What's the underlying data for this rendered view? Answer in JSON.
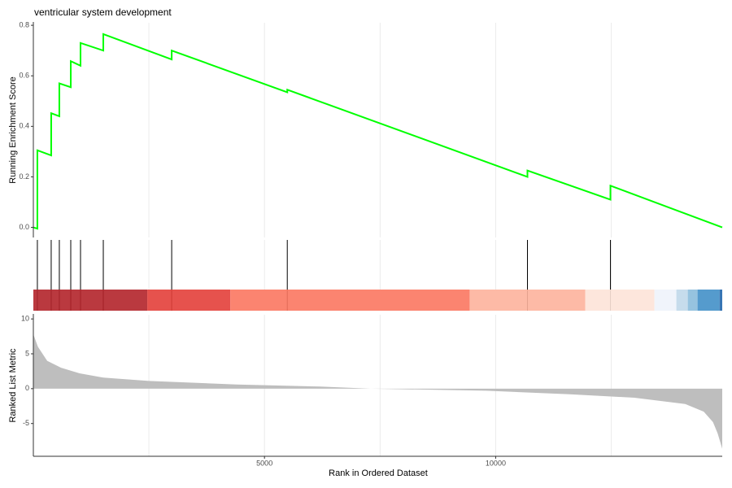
{
  "chart_data": [
    {
      "type": "line",
      "title": "ventricular system development",
      "ylabel": "Running Enrichment Score",
      "x": [
        1,
        88,
        88,
        387,
        387,
        563,
        563,
        810,
        810,
        1021,
        1021,
        1514,
        1514,
        2993,
        2993,
        5493,
        5493,
        10687,
        10687,
        12482,
        12482,
        14900
      ],
      "series": [
        {
          "color": "#00ff00",
          "values": [
            0,
            -0.005,
            0.305,
            0.285,
            0.452,
            0.44,
            0.57,
            0.555,
            0.658,
            0.64,
            0.73,
            0.7,
            0.765,
            0.665,
            0.7,
            0.535,
            0.545,
            0.2,
            0.225,
            0.11,
            0.165,
            0
          ]
        }
      ],
      "xlim": [
        1,
        14900
      ],
      "ylim": [
        -0.04,
        0.81
      ],
      "yticks": [
        {
          "value": 0,
          "label": "0.0"
        },
        0.2,
        0.4,
        0.6,
        0.8
      ],
      "xgrid": [
        2500,
        5000,
        7500,
        10000,
        12500
      ]
    },
    {
      "type": "rug",
      "x": [
        88,
        387,
        563,
        810,
        1021,
        1514,
        2993,
        5493,
        10687,
        12482
      ],
      "color": "#000000",
      "xlim": [
        1,
        14900
      ],
      "xgrid": [
        2500,
        5000,
        7500,
        10000,
        12500
      ]
    },
    {
      "type": "colorbar",
      "bins": [
        1,
        2465,
        4261,
        9437,
        11937,
        13433,
        13908,
        14155,
        14366,
        14842,
        14900
      ],
      "colors": [
        "#b2242a",
        "#e33f3a",
        "#fb7760",
        "#fdb39c",
        "#fde3d8",
        "#eef3fb",
        "#c0d8ea",
        "#8bbcdc",
        "#4390c8",
        "#2166ac"
      ],
      "xlim": [
        1,
        14900
      ]
    },
    {
      "type": "area",
      "xlabel": "Rank in Ordered Dataset",
      "ylabel": "Ranked List Metric",
      "x": [
        1,
        100,
        300,
        600,
        1000,
        1500,
        2500,
        4400,
        6200,
        7300,
        9800,
        11600,
        13000,
        14100,
        14500,
        14700,
        14800,
        14900
      ],
      "values": [
        7.8,
        6.0,
        4.0,
        3.0,
        2.2,
        1.6,
        1.1,
        0.6,
        0.3,
        0.0,
        -0.3,
        -0.8,
        -1.3,
        -2.2,
        -3.3,
        -4.8,
        -6.4,
        -8.6
      ],
      "color": "#bebebe",
      "xlim": [
        1,
        14900
      ],
      "ylim": [
        -9.7,
        10.6
      ],
      "yticks": [
        10,
        5,
        0,
        -5
      ],
      "xticks": [
        5000,
        10000
      ],
      "xgrid": [
        2500,
        5000,
        7500,
        10000,
        12500
      ]
    }
  ]
}
